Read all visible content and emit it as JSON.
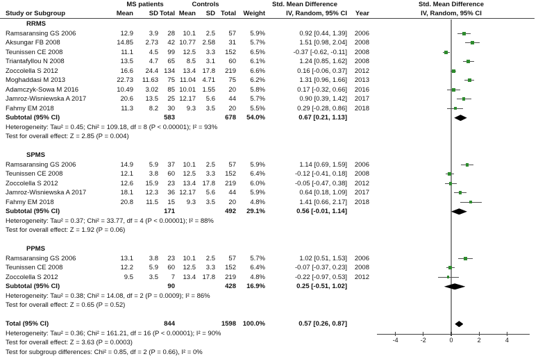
{
  "colors": {
    "marker_green": "#2e8b2e",
    "ci_line": "#4d4d4d",
    "zero_line": "#8c8c8c",
    "diamond": "#000000",
    "axis_line": "#3f3f3f"
  },
  "header": {
    "group1_label": "MS patients",
    "group2_label": "Controls",
    "effect_label": "Std. Mean Difference",
    "study_col": "Study or Subgroup",
    "mean_col": "Mean",
    "sd_col": "SD",
    "total_col": "Total",
    "mean2_col": "Mean",
    "sd2_col": "SD",
    "total2_col": "Total",
    "weight_col": "Weight",
    "ci_col": "IV, Random, 95% CI",
    "year_col": "Year",
    "plot_title": "Std. Mean Difference",
    "plot_subtitle": "IV, Random, 95% CI"
  },
  "chart_data": {
    "type": "forest",
    "title": "Std. Mean Difference, IV, Random, 95% CI",
    "axis": {
      "ticks": [
        -4,
        -2,
        0,
        2,
        4
      ],
      "tick_labels": [
        "-4",
        "-2",
        "0",
        "2",
        "4"
      ],
      "xlim": [
        -5.3,
        5.6
      ],
      "zero_line": 0
    },
    "sections": [
      {
        "label": "RRMS",
        "studies": [
          {
            "study": "Ramsaransing GS 2006",
            "mean_ms": "12.9",
            "sd_ms": "3.9",
            "total_ms": "28",
            "mean_c": "10.1",
            "sd_c": "2.5",
            "total_c": "57",
            "weight": "5.9%",
            "smd_ci": "0.92 [0.44, 1.39]",
            "year": "2006",
            "est": 0.92,
            "lo": 0.44,
            "hi": 1.39
          },
          {
            "study": "Aksungar FB 2008",
            "mean_ms": "14.85",
            "sd_ms": "2.73",
            "total_ms": "42",
            "mean_c": "10.77",
            "sd_c": "2.58",
            "total_c": "31",
            "weight": "5.7%",
            "smd_ci": "1.51 [0.98, 2.04]",
            "year": "2008",
            "est": 1.51,
            "lo": 0.98,
            "hi": 2.04
          },
          {
            "study": "Teunissen CE 2008",
            "mean_ms": "11.1",
            "sd_ms": "4.5",
            "total_ms": "99",
            "mean_c": "12.5",
            "sd_c": "3.3",
            "total_c": "152",
            "weight": "6.5%",
            "smd_ci": "-0.37 [-0.62, -0.11]",
            "year": "2008",
            "est": -0.37,
            "lo": -0.62,
            "hi": -0.11
          },
          {
            "study": "Triantafyllou N 2008",
            "mean_ms": "13.5",
            "sd_ms": "4.7",
            "total_ms": "65",
            "mean_c": "8.5",
            "sd_c": "3.1",
            "total_c": "60",
            "weight": "6.1%",
            "smd_ci": "1.24 [0.85, 1.62]",
            "year": "2008",
            "est": 1.24,
            "lo": 0.85,
            "hi": 1.62
          },
          {
            "study": "Zoccolella S 2012",
            "mean_ms": "16.6",
            "sd_ms": "24.4",
            "total_ms": "134",
            "mean_c": "13.4",
            "sd_c": "17.8",
            "total_c": "219",
            "weight": "6.6%",
            "smd_ci": "0.16 [-0.06, 0.37]",
            "year": "2012",
            "est": 0.16,
            "lo": -0.06,
            "hi": 0.37
          },
          {
            "study": "Moghaddasi M 2013",
            "mean_ms": "22.73",
            "sd_ms": "11.63",
            "total_ms": "75",
            "mean_c": "11.04",
            "sd_c": "4.71",
            "total_c": "75",
            "weight": "6.2%",
            "smd_ci": "1.31 [0.96, 1.66]",
            "year": "2013",
            "est": 1.31,
            "lo": 0.96,
            "hi": 1.66
          },
          {
            "study": "Adamczyk-Sowa M 2016",
            "mean_ms": "10.49",
            "sd_ms": "3.02",
            "total_ms": "85",
            "mean_c": "10.01",
            "sd_c": "1.55",
            "total_c": "20",
            "weight": "5.8%",
            "smd_ci": "0.17 [-0.32, 0.66]",
            "year": "2016",
            "est": 0.17,
            "lo": -0.32,
            "hi": 0.66
          },
          {
            "study": "Jamroz-Wisniewska A 2017",
            "mean_ms": "20.6",
            "sd_ms": "13.5",
            "total_ms": "25",
            "mean_c": "12.17",
            "sd_c": "5.6",
            "total_c": "44",
            "weight": "5.7%",
            "smd_ci": "0.90 [0.39, 1.42]",
            "year": "2017",
            "est": 0.9,
            "lo": 0.39,
            "hi": 1.42
          },
          {
            "study": "Fahmy EM 2018",
            "mean_ms": "11.3",
            "sd_ms": "8.2",
            "total_ms": "30",
            "mean_c": "9.3",
            "sd_c": "3.5",
            "total_c": "20",
            "weight": "5.5%",
            "smd_ci": "0.29 [-0.28, 0.86]",
            "year": "2018",
            "est": 0.29,
            "lo": -0.28,
            "hi": 0.86
          }
        ],
        "subtotal": {
          "label": "Subtotal (95% CI)",
          "total_ms": "583",
          "total_c": "678",
          "weight": "54.0%",
          "smd_ci": "0.67 [0.21, 1.13]",
          "est": 0.67,
          "lo": 0.21,
          "hi": 1.13
        },
        "heterogeneity": "Heterogeneity: Tau² = 0.45; Chi² = 109.18, df = 8 (P < 0.00001); I² = 93%",
        "overall_effect": "Test for overall effect: Z = 2.85 (P = 0.004)"
      },
      {
        "label": "SPMS",
        "studies": [
          {
            "study": "Ramsaransing GS 2006",
            "mean_ms": "14.9",
            "sd_ms": "5.9",
            "total_ms": "37",
            "mean_c": "10.1",
            "sd_c": "2.5",
            "total_c": "57",
            "weight": "5.9%",
            "smd_ci": "1.14 [0.69, 1.59]",
            "year": "2006",
            "est": 1.14,
            "lo": 0.69,
            "hi": 1.59
          },
          {
            "study": "Teunissen CE 2008",
            "mean_ms": "12.1",
            "sd_ms": "3.8",
            "total_ms": "60",
            "mean_c": "12.5",
            "sd_c": "3.3",
            "total_c": "152",
            "weight": "6.4%",
            "smd_ci": "-0.12 [-0.41, 0.18]",
            "year": "2008",
            "est": -0.12,
            "lo": -0.41,
            "hi": 0.18
          },
          {
            "study": "Zoccolella S 2012",
            "mean_ms": "12.6",
            "sd_ms": "15.9",
            "total_ms": "23",
            "mean_c": "13.4",
            "sd_c": "17.8",
            "total_c": "219",
            "weight": "6.0%",
            "smd_ci": "-0.05 [-0.47, 0.38]",
            "year": "2012",
            "est": -0.05,
            "lo": -0.47,
            "hi": 0.38
          },
          {
            "study": "Jamroz-Wisniewska A 2017",
            "mean_ms": "18.1",
            "sd_ms": "12.3",
            "total_ms": "36",
            "mean_c": "12.17",
            "sd_c": "5.6",
            "total_c": "44",
            "weight": "5.9%",
            "smd_ci": "0.64 [0.18, 1.09]",
            "year": "2017",
            "est": 0.64,
            "lo": 0.18,
            "hi": 1.09
          },
          {
            "study": "Fahmy EM 2018",
            "mean_ms": "20.8",
            "sd_ms": "11.5",
            "total_ms": "15",
            "mean_c": "9.3",
            "sd_c": "3.5",
            "total_c": "20",
            "weight": "4.8%",
            "smd_ci": "1.41 [0.66, 2.17]",
            "year": "2018",
            "est": 1.41,
            "lo": 0.66,
            "hi": 2.17
          }
        ],
        "subtotal": {
          "label": "Subtotal (95% CI)",
          "total_ms": "171",
          "total_c": "492",
          "weight": "29.1%",
          "smd_ci": "0.56 [-0.01, 1.14]",
          "est": 0.56,
          "lo": -0.01,
          "hi": 1.14
        },
        "heterogeneity": "Heterogeneity: Tau² = 0.37; Chi² = 33.77, df = 4 (P < 0.00001); I² = 88%",
        "overall_effect": "Test for overall effect: Z = 1.92 (P = 0.06)"
      },
      {
        "label": "PPMS",
        "studies": [
          {
            "study": "Ramsaransing GS 2006",
            "mean_ms": "13.1",
            "sd_ms": "3.8",
            "total_ms": "23",
            "mean_c": "10.1",
            "sd_c": "2.5",
            "total_c": "57",
            "weight": "5.7%",
            "smd_ci": "1.02 [0.51, 1.53]",
            "year": "2006",
            "est": 1.02,
            "lo": 0.51,
            "hi": 1.53
          },
          {
            "study": "Teunissen CE 2008",
            "mean_ms": "12.2",
            "sd_ms": "5.9",
            "total_ms": "60",
            "mean_c": "12.5",
            "sd_c": "3.3",
            "total_c": "152",
            "weight": "6.4%",
            "smd_ci": "-0.07 [-0.37, 0.23]",
            "year": "2008",
            "est": -0.07,
            "lo": -0.37,
            "hi": 0.23
          },
          {
            "study": "Zoccolella S 2012",
            "mean_ms": "9.5",
            "sd_ms": "3.5",
            "total_ms": "7",
            "mean_c": "13.4",
            "sd_c": "17.8",
            "total_c": "219",
            "weight": "4.8%",
            "smd_ci": "-0.22 [-0.97, 0.53]",
            "year": "2012",
            "est": -0.22,
            "lo": -0.97,
            "hi": 0.53
          }
        ],
        "subtotal": {
          "label": "Subtotal (95% CI)",
          "total_ms": "90",
          "total_c": "428",
          "weight": "16.9%",
          "smd_ci": "0.25 [-0.51, 1.02]",
          "est": 0.25,
          "lo": -0.51,
          "hi": 1.02
        },
        "heterogeneity": "Heterogeneity: Tau² = 0.38; Chi² = 14.08, df = 2 (P = 0.0009); I² = 86%",
        "overall_effect": "Test for overall effect: Z = 0.65 (P = 0.52)"
      }
    ],
    "total": {
      "label": "Total (95% CI)",
      "total_ms": "844",
      "total_c": "1598",
      "weight": "100.0%",
      "smd_ci": "0.57 [0.26, 0.87]",
      "est": 0.57,
      "lo": 0.26,
      "hi": 0.87
    },
    "footnotes": [
      "Heterogeneity: Tau² = 0.36; Chi² = 161.21, df = 16 (P < 0.00001); I² = 90%",
      "Test for overall effect: Z = 3.63 (P = 0.0003)",
      "Test for subgroup differences: Chi² = 0.85, df = 2 (P = 0.66), I² = 0%"
    ]
  }
}
